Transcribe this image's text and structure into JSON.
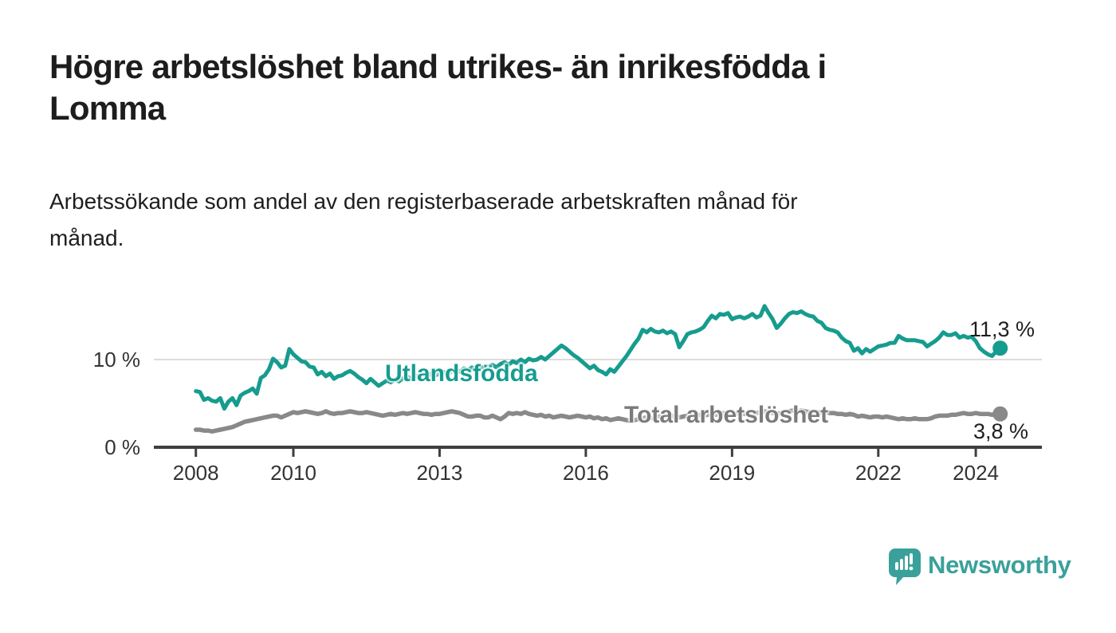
{
  "header": {
    "title_line1": "Högre arbetslöshet bland utrikes- än inrikesfödda i",
    "title_line2": "Lomma",
    "subtitle_line1": "Arbetssökande som andel av den registerbaserade arbetskraften månad för",
    "subtitle_line2": "månad."
  },
  "chart_data": {
    "type": "line",
    "title": "Arbetssökande som andel av den registerbaserade arbetskraften månad för månad",
    "x_monthly_start": "2008-01",
    "x_monthly_end": "2024-07",
    "x_tick_years": [
      2008,
      2010,
      2013,
      2016,
      2019,
      2022,
      2024
    ],
    "y_ticks": [
      {
        "value": 0,
        "label": "0 %"
      },
      {
        "value": 10,
        "label": "10 %"
      }
    ],
    "ylim": [
      0,
      17
    ],
    "grid": "single light horizontal gridline at 10 %, dark baseline at 0 %",
    "legend_position": "inline labels on lines",
    "axis_color": "#3f3f3f",
    "gridline_color": "#dcdcdc",
    "series": [
      {
        "name": "Total arbetslöshet",
        "color": "#898989",
        "label_color": "#7b7b7b",
        "end_label": "3,8 %",
        "end_value": 3.8,
        "values": [
          2.0,
          2.0,
          1.9,
          1.9,
          1.8,
          1.9,
          2.0,
          2.1,
          2.2,
          2.3,
          2.5,
          2.7,
          2.9,
          3.0,
          3.1,
          3.2,
          3.3,
          3.4,
          3.5,
          3.6,
          3.6,
          3.4,
          3.6,
          3.8,
          4.0,
          3.9,
          4.0,
          4.1,
          4.0,
          3.9,
          3.8,
          3.9,
          4.1,
          3.9,
          3.8,
          3.9,
          3.9,
          4.0,
          4.1,
          4.0,
          3.9,
          3.9,
          4.0,
          3.9,
          3.8,
          3.7,
          3.6,
          3.7,
          3.8,
          3.7,
          3.8,
          3.9,
          3.8,
          3.9,
          4.0,
          3.9,
          3.8,
          3.8,
          3.7,
          3.8,
          3.8,
          3.9,
          4.0,
          4.1,
          4.0,
          3.9,
          3.7,
          3.5,
          3.5,
          3.6,
          3.6,
          3.4,
          3.4,
          3.6,
          3.4,
          3.2,
          3.5,
          3.9,
          3.8,
          3.9,
          3.8,
          4.0,
          3.8,
          3.7,
          3.6,
          3.7,
          3.5,
          3.6,
          3.4,
          3.5,
          3.6,
          3.5,
          3.4,
          3.5,
          3.6,
          3.5,
          3.4,
          3.5,
          3.3,
          3.4,
          3.2,
          3.3,
          3.1,
          3.2,
          3.3,
          3.2,
          3.1,
          3.0,
          3.1,
          3.2,
          3.3,
          3.4,
          3.3,
          3.4,
          3.5,
          3.4,
          3.5,
          3.6,
          3.5,
          3.4,
          3.5,
          3.6,
          3.5,
          3.6,
          3.7,
          3.6,
          3.7,
          3.8,
          3.7,
          3.8,
          3.9,
          3.8,
          3.9,
          3.8,
          3.9,
          3.8,
          3.9,
          4.0,
          3.9,
          4.0,
          4.1,
          4.0,
          3.9,
          3.8,
          3.9,
          4.0,
          4.1,
          4.2,
          4.1,
          4.2,
          4.1,
          4.0,
          4.1,
          4.0,
          3.9,
          4.0,
          3.9,
          3.9,
          3.8,
          3.8,
          3.7,
          3.8,
          3.7,
          3.5,
          3.6,
          3.5,
          3.4,
          3.5,
          3.5,
          3.4,
          3.5,
          3.4,
          3.3,
          3.2,
          3.3,
          3.2,
          3.2,
          3.3,
          3.2,
          3.2,
          3.2,
          3.3,
          3.5,
          3.6,
          3.6,
          3.6,
          3.7,
          3.7,
          3.8,
          3.9,
          3.8,
          3.8,
          3.9,
          3.8,
          3.8,
          3.8,
          3.7,
          3.8,
          3.8
        ]
      },
      {
        "name": "Utlandsfödda",
        "color": "#169c8f",
        "label_color": "#169c8f",
        "end_label": "11,3 %",
        "end_value": 11.3,
        "values": [
          6.4,
          6.3,
          5.4,
          5.6,
          5.3,
          5.2,
          5.6,
          4.4,
          5.2,
          5.6,
          4.8,
          5.9,
          6.2,
          6.4,
          6.7,
          6.1,
          7.9,
          8.2,
          8.9,
          10.1,
          9.7,
          9.1,
          9.3,
          11.2,
          10.6,
          10.2,
          9.8,
          9.7,
          9.2,
          9.1,
          8.3,
          8.6,
          8.1,
          8.4,
          7.8,
          8.1,
          8.2,
          8.5,
          8.7,
          8.4,
          8.0,
          7.7,
          7.3,
          7.8,
          7.4,
          7.0,
          7.3,
          7.6,
          7.4,
          7.7,
          7.5,
          7.9,
          8.1,
          7.8,
          8.2,
          8.0,
          8.3,
          8.1,
          8.4,
          8.2,
          8.4,
          8.6,
          8.3,
          8.7,
          8.9,
          8.6,
          9.0,
          8.8,
          9.1,
          8.9,
          9.2,
          9.0,
          9.2,
          9.4,
          9.1,
          9.5,
          9.7,
          9.4,
          9.8,
          9.6,
          10.0,
          9.7,
          10.1,
          9.9,
          10.0,
          10.3,
          10.0,
          10.4,
          10.8,
          11.2,
          11.6,
          11.3,
          10.9,
          10.5,
          10.2,
          9.8,
          9.4,
          9.0,
          9.3,
          8.8,
          8.6,
          8.3,
          8.9,
          8.6,
          9.2,
          9.8,
          10.4,
          11.1,
          11.8,
          12.4,
          13.4,
          13.1,
          13.5,
          13.2,
          13.1,
          13.3,
          13.0,
          13.2,
          12.9,
          11.4,
          12.1,
          12.9,
          13.1,
          13.2,
          13.4,
          13.7,
          14.4,
          15.0,
          14.7,
          15.2,
          15.1,
          15.3,
          14.6,
          14.8,
          14.9,
          14.7,
          14.9,
          15.2,
          14.8,
          15.0,
          16.1,
          15.3,
          14.6,
          13.6,
          14.1,
          14.7,
          15.2,
          15.4,
          15.3,
          15.5,
          15.2,
          15.0,
          14.9,
          14.4,
          14.2,
          13.6,
          13.4,
          13.3,
          13.1,
          12.5,
          12.1,
          11.9,
          11.0,
          11.3,
          10.7,
          11.2,
          10.9,
          11.2,
          11.5,
          11.6,
          11.7,
          11.9,
          11.9,
          12.7,
          12.4,
          12.2,
          12.2,
          12.2,
          12.1,
          12.0,
          11.5,
          11.8,
          12.1,
          12.5,
          13.1,
          12.8,
          12.8,
          13.0,
          12.5,
          12.7,
          12.5,
          12.6,
          12.1,
          11.3,
          10.9,
          10.6,
          10.4,
          10.9,
          11.3
        ]
      }
    ]
  },
  "footer": {
    "brand": "Newsworthy",
    "brand_color": "#3aa09a",
    "logo_icon": "speech-bubble-bar-chart-icon"
  }
}
